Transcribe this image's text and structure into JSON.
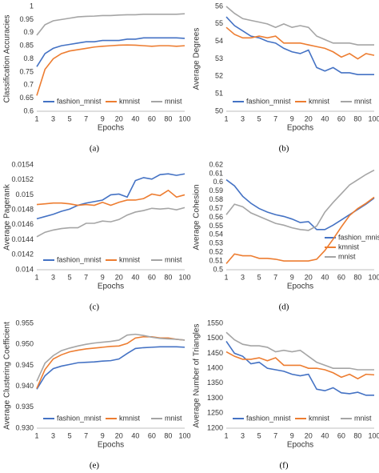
{
  "chart_data": [
    {
      "type": "line",
      "caption": "(a)",
      "y_label": "Classification Accuracies",
      "x_label": "Epochs",
      "legend": "lower center",
      "categories": [
        "1",
        null,
        "3",
        null,
        "5",
        null,
        "7",
        null,
        "9",
        null,
        "20",
        null,
        "40",
        null,
        "60",
        null,
        "80",
        null,
        "100"
      ],
      "ylim": [
        0.6,
        1
      ],
      "yticks": [
        0.6,
        0.65,
        0.7,
        0.75,
        0.8,
        0.85,
        0.9,
        0.95,
        1
      ],
      "grid": false,
      "series": [
        {
          "name": "fashion_mnist",
          "color": "#4472c4",
          "values": [
            0.77,
            0.82,
            0.84,
            0.85,
            0.855,
            0.86,
            0.865,
            0.865,
            0.87,
            0.87,
            0.87,
            0.875,
            0.875,
            0.88,
            0.88,
            0.88,
            0.88,
            0.88,
            0.878
          ]
        },
        {
          "name": "kmnist",
          "color": "#ed7d31",
          "values": [
            0.66,
            0.76,
            0.8,
            0.82,
            0.83,
            0.835,
            0.84,
            0.845,
            0.848,
            0.85,
            0.852,
            0.853,
            0.852,
            0.85,
            0.848,
            0.85,
            0.85,
            0.848,
            0.85
          ]
        },
        {
          "name": "mnist",
          "color": "#a5a5a5",
          "values": [
            0.89,
            0.93,
            0.945,
            0.95,
            0.955,
            0.96,
            0.962,
            0.963,
            0.965,
            0.965,
            0.967,
            0.968,
            0.968,
            0.97,
            0.97,
            0.97,
            0.97,
            0.97,
            0.972
          ]
        }
      ]
    },
    {
      "type": "line",
      "caption": "(b)",
      "y_label": "Average Degrees",
      "x_label": "Epochs",
      "legend": "lower center",
      "categories": [
        "1",
        null,
        "3",
        null,
        "5",
        null,
        "7",
        null,
        "9",
        null,
        "20",
        null,
        "40",
        null,
        "60",
        null,
        "80",
        null,
        "100"
      ],
      "ylim": [
        50,
        56
      ],
      "yticks": [
        50,
        51,
        52,
        53,
        54,
        55,
        56
      ],
      "grid": false,
      "series": [
        {
          "name": "fashion_mnist",
          "color": "#4472c4",
          "values": [
            55.4,
            54.9,
            54.6,
            54.3,
            54.2,
            54.0,
            53.9,
            53.6,
            53.4,
            53.3,
            53.5,
            52.5,
            52.3,
            52.5,
            52.2,
            52.2,
            52.1,
            52.1,
            52.1
          ]
        },
        {
          "name": "kmnist",
          "color": "#ed7d31",
          "values": [
            54.8,
            54.4,
            54.2,
            54.2,
            54.3,
            54.2,
            54.3,
            53.9,
            53.9,
            53.9,
            53.8,
            53.7,
            53.6,
            53.4,
            53.1,
            53.3,
            53.0,
            53.3,
            53.2
          ]
        },
        {
          "name": "mnist",
          "color": "#a5a5a5",
          "values": [
            56.0,
            55.6,
            55.3,
            55.2,
            55.1,
            55.0,
            54.8,
            55.0,
            54.8,
            54.9,
            54.8,
            54.3,
            54.1,
            53.9,
            53.9,
            53.9,
            53.8,
            53.8,
            53.8
          ]
        }
      ]
    },
    {
      "type": "line",
      "caption": "(c)",
      "y_label": "Average Pagerank",
      "x_label": "Epochs",
      "legend": "lower center",
      "categories": [
        "1",
        null,
        "3",
        null,
        "5",
        null,
        "7",
        null,
        "9",
        null,
        "20",
        null,
        "40",
        null,
        "60",
        null,
        "80",
        null,
        "100"
      ],
      "ylim": [
        0.014,
        0.0154
      ],
      "yticks": [
        0.014,
        0.0142,
        0.0144,
        0.0146,
        0.0148,
        0.015,
        0.0152,
        0.0154
      ],
      "grid": false,
      "series": [
        {
          "name": "fashion_mnist",
          "color": "#4472c4",
          "values": [
            0.01468,
            0.01471,
            0.01474,
            0.01478,
            0.01481,
            0.01486,
            0.01489,
            0.01491,
            0.01493,
            0.015,
            0.01501,
            0.01497,
            0.01519,
            0.01523,
            0.01521,
            0.01527,
            0.01528,
            0.01526,
            0.01528
          ]
        },
        {
          "name": "kmnist",
          "color": "#ed7d31",
          "values": [
            0.01487,
            0.01488,
            0.01489,
            0.01489,
            0.01488,
            0.01486,
            0.01487,
            0.01486,
            0.0149,
            0.01486,
            0.0149,
            0.01493,
            0.01493,
            0.01495,
            0.01501,
            0.01499,
            0.01506,
            0.01497,
            0.015
          ]
        },
        {
          "name": "mnist",
          "color": "#a5a5a5",
          "values": [
            0.01444,
            0.0145,
            0.01453,
            0.01455,
            0.01456,
            0.01456,
            0.01462,
            0.01462,
            0.01465,
            0.01464,
            0.01467,
            0.01473,
            0.01477,
            0.01479,
            0.01482,
            0.01481,
            0.01482,
            0.0148,
            0.01483
          ]
        }
      ]
    },
    {
      "type": "line",
      "caption": "(d)",
      "y_label": "Average Cohesion",
      "x_label": "Epochs",
      "legend": "lower right",
      "categories": [
        "1",
        null,
        "3",
        null,
        "5",
        null,
        "7",
        null,
        "9",
        null,
        "20",
        null,
        "40",
        null,
        "60",
        null,
        "80",
        null,
        "100"
      ],
      "ylim": [
        0.5,
        0.62
      ],
      "yticks": [
        0.5,
        0.51,
        0.52,
        0.53,
        0.54,
        0.55,
        0.56,
        0.57,
        0.58,
        0.59,
        0.6,
        0.61,
        0.62
      ],
      "grid": false,
      "series": [
        {
          "name": "fashion_mnist",
          "color": "#4472c4",
          "values": [
            0.603,
            0.596,
            0.584,
            0.576,
            0.57,
            0.566,
            0.563,
            0.561,
            0.558,
            0.554,
            0.555,
            0.546,
            0.546,
            0.551,
            0.557,
            0.563,
            0.569,
            0.575,
            0.582
          ]
        },
        {
          "name": "kmnist",
          "color": "#ed7d31",
          "values": [
            0.507,
            0.518,
            0.516,
            0.516,
            0.513,
            0.513,
            0.512,
            0.51,
            0.51,
            0.51,
            0.51,
            0.512,
            0.522,
            0.535,
            0.549,
            0.562,
            0.57,
            0.576,
            0.583
          ]
        },
        {
          "name": "mnist",
          "color": "#a5a5a5",
          "values": [
            0.563,
            0.575,
            0.572,
            0.565,
            0.561,
            0.557,
            0.553,
            0.551,
            0.548,
            0.546,
            0.545,
            0.55,
            0.566,
            0.577,
            0.587,
            0.597,
            0.603,
            0.609,
            0.614
          ]
        }
      ]
    },
    {
      "type": "line",
      "caption": "(e)",
      "y_label": "Average Clustering Coefficient",
      "x_label": "Epochs",
      "legend": "lower center",
      "categories": [
        "1",
        null,
        "3",
        null,
        "5",
        null,
        "7",
        null,
        "9",
        null,
        "20",
        null,
        "40",
        null,
        "60",
        null,
        "80",
        null,
        "100"
      ],
      "ylim": [
        0.93,
        0.955
      ],
      "yticks": [
        {
          "value": 0.93,
          "label": "0.930"
        },
        0.935,
        {
          "value": 0.94,
          "label": "0.940"
        },
        0.945,
        {
          "value": 0.95,
          "label": "0.950"
        },
        0.955
      ],
      "grid": false,
      "series": [
        {
          "name": "fashion_mnist",
          "color": "#4472c4",
          "values": [
            0.9393,
            0.9425,
            0.9442,
            0.9448,
            0.9452,
            0.9456,
            0.9457,
            0.9458,
            0.946,
            0.9461,
            0.9465,
            0.9478,
            0.949,
            0.9492,
            0.9493,
            0.9494,
            0.9494,
            0.9494,
            0.9493
          ]
        },
        {
          "name": "kmnist",
          "color": "#ed7d31",
          "values": [
            0.9395,
            0.944,
            0.9465,
            0.9475,
            0.9482,
            0.9486,
            0.9489,
            0.9491,
            0.9493,
            0.9495,
            0.9496,
            0.9502,
            0.9515,
            0.9518,
            0.9518,
            0.9515,
            0.9515,
            0.9512,
            0.951
          ]
        },
        {
          "name": "mnist",
          "color": "#a5a5a5",
          "values": [
            0.9412,
            0.9455,
            0.9473,
            0.9485,
            0.9491,
            0.9496,
            0.95,
            0.9503,
            0.9505,
            0.9507,
            0.951,
            0.9522,
            0.9524,
            0.9521,
            0.9517,
            0.9514,
            0.9513,
            0.9512,
            0.951
          ]
        }
      ]
    },
    {
      "type": "line",
      "caption": "(f)",
      "y_label": "Average Number of Triangles",
      "x_label": "Epochs",
      "legend": "lower center",
      "categories": [
        "1",
        null,
        "3",
        null,
        "5",
        null,
        "7",
        null,
        "9",
        null,
        "20",
        null,
        "40",
        null,
        "60",
        null,
        "80",
        null,
        "100"
      ],
      "ylim": [
        1200,
        1550
      ],
      "yticks": [
        1200,
        1250,
        1300,
        1350,
        1400,
        1450,
        1500,
        1550
      ],
      "grid": false,
      "series": [
        {
          "name": "fashion_mnist",
          "color": "#4472c4",
          "values": [
            1490,
            1450,
            1440,
            1415,
            1420,
            1400,
            1395,
            1390,
            1380,
            1375,
            1380,
            1330,
            1325,
            1335,
            1318,
            1315,
            1320,
            1310,
            1310
          ]
        },
        {
          "name": "kmnist",
          "color": "#ed7d31",
          "values": [
            1455,
            1440,
            1430,
            1430,
            1435,
            1425,
            1435,
            1410,
            1410,
            1410,
            1400,
            1400,
            1395,
            1385,
            1370,
            1380,
            1365,
            1380,
            1378
          ]
        },
        {
          "name": "mnist",
          "color": "#a5a5a5",
          "values": [
            1520,
            1495,
            1480,
            1475,
            1475,
            1470,
            1455,
            1460,
            1455,
            1460,
            1440,
            1420,
            1410,
            1400,
            1400,
            1400,
            1395,
            1395,
            1395
          ]
        }
      ]
    }
  ]
}
